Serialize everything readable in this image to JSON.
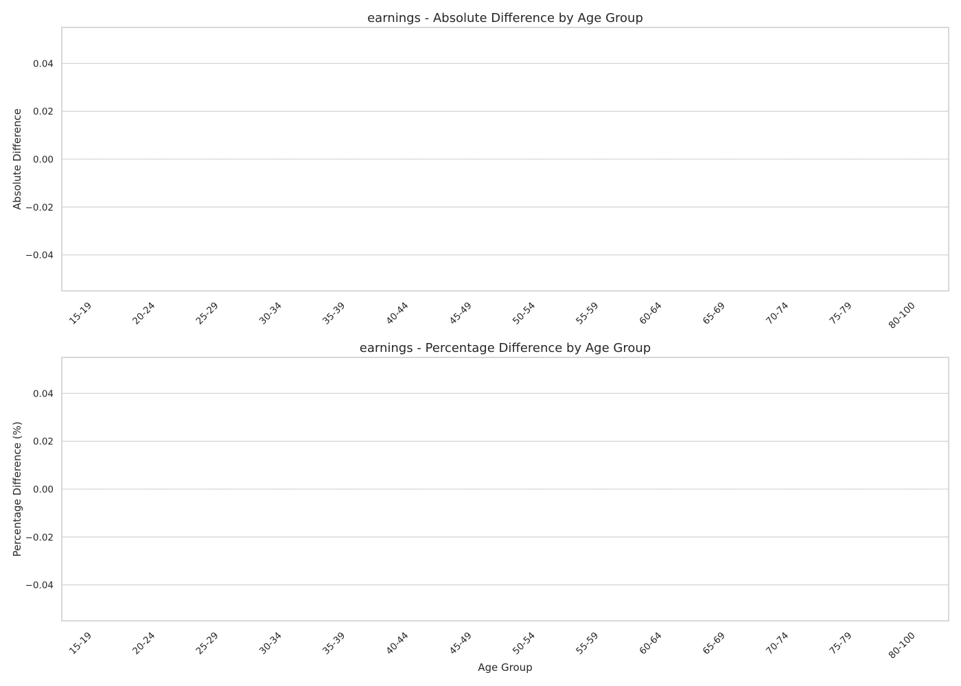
{
  "chart_data": [
    {
      "type": "bar",
      "title": "earnings - Absolute Difference by Age Group",
      "xlabel": "",
      "ylabel": "Absolute Difference",
      "categories": [
        "15-19",
        "20-24",
        "25-29",
        "30-34",
        "35-39",
        "40-44",
        "45-49",
        "50-54",
        "55-59",
        "60-64",
        "65-69",
        "70-74",
        "75-79",
        "80-100"
      ],
      "values": [
        0,
        0,
        0,
        0,
        0,
        0,
        0,
        0,
        0,
        0,
        0,
        0,
        0,
        0
      ],
      "ylim": [
        -0.055,
        0.055
      ],
      "yticks": [
        -0.04,
        -0.02,
        0.0,
        0.02,
        0.04
      ],
      "ytick_labels": [
        "−0.04",
        "−0.02",
        "0.00",
        "0.02",
        "0.04"
      ],
      "grid": true
    },
    {
      "type": "bar",
      "title": "earnings - Percentage Difference by Age Group",
      "xlabel": "Age Group",
      "ylabel": "Percentage Difference (%)",
      "categories": [
        "15-19",
        "20-24",
        "25-29",
        "30-34",
        "35-39",
        "40-44",
        "45-49",
        "50-54",
        "55-59",
        "60-64",
        "65-69",
        "70-74",
        "75-79",
        "80-100"
      ],
      "values": [
        0,
        0,
        0,
        0,
        0,
        0,
        0,
        0,
        0,
        0,
        0,
        0,
        0,
        0
      ],
      "ylim": [
        -0.055,
        0.055
      ],
      "yticks": [
        -0.04,
        -0.02,
        0.0,
        0.02,
        0.04
      ],
      "ytick_labels": [
        "−0.04",
        "−0.02",
        "0.00",
        "0.02",
        "0.04"
      ],
      "grid": true
    }
  ]
}
